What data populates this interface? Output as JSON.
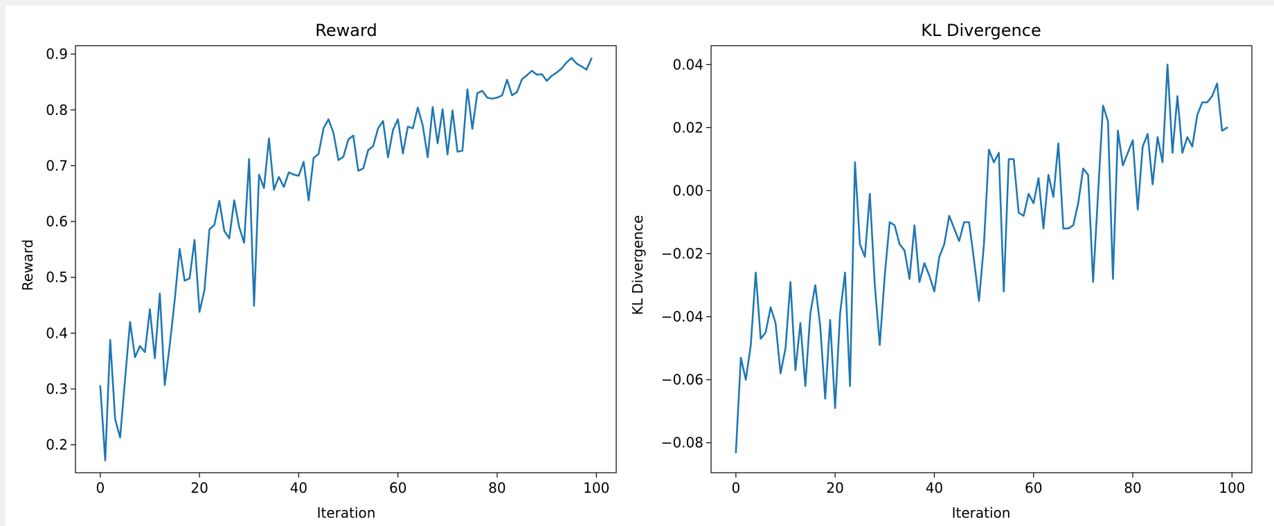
{
  "chart_data": [
    {
      "type": "line",
      "title": "Reward",
      "xlabel": "Iteration",
      "ylabel": "Reward",
      "xlim": [
        -5,
        104
      ],
      "ylim": [
        0.15,
        0.915
      ],
      "xticks": [
        0,
        20,
        40,
        60,
        80,
        100
      ],
      "yticks": [
        0.2,
        0.3,
        0.4,
        0.5,
        0.6,
        0.7,
        0.8,
        0.9
      ],
      "ytick_labels": [
        "0.2",
        "0.3",
        "0.4",
        "0.5",
        "0.6",
        "0.7",
        "0.8",
        "0.9"
      ],
      "grid": false,
      "color": "#1f77b4",
      "series": [
        {
          "x": [
            0,
            1,
            2,
            3,
            4,
            5,
            6,
            7,
            8,
            9,
            10,
            11,
            12,
            13,
            14,
            15,
            16,
            17,
            18,
            19,
            20,
            21,
            22,
            23,
            24,
            25,
            26,
            27,
            28,
            29,
            30,
            31,
            32,
            33,
            34,
            35,
            36,
            37,
            38,
            39,
            40,
            41,
            42,
            43,
            44,
            45,
            46,
            47,
            48,
            49,
            50,
            51,
            52,
            53,
            54,
            55,
            56,
            57,
            58,
            59,
            60,
            61,
            62,
            63,
            64,
            65,
            66,
            67,
            68,
            69,
            70,
            71,
            72,
            73,
            74,
            75,
            76,
            77,
            78,
            79,
            80,
            81,
            82,
            83,
            84,
            85,
            86,
            87,
            88,
            89,
            90,
            91,
            92,
            93,
            94,
            95,
            96,
            97,
            98,
            99
          ],
          "values": [
            0.305,
            0.172,
            0.388,
            0.246,
            0.213,
            0.318,
            0.42,
            0.357,
            0.377,
            0.366,
            0.443,
            0.355,
            0.471,
            0.307,
            0.378,
            0.459,
            0.551,
            0.494,
            0.498,
            0.567,
            0.438,
            0.477,
            0.586,
            0.594,
            0.637,
            0.583,
            0.57,
            0.638,
            0.59,
            0.562,
            0.712,
            0.449,
            0.684,
            0.66,
            0.749,
            0.657,
            0.68,
            0.662,
            0.688,
            0.684,
            0.682,
            0.707,
            0.638,
            0.714,
            0.721,
            0.767,
            0.783,
            0.759,
            0.71,
            0.716,
            0.747,
            0.754,
            0.691,
            0.695,
            0.728,
            0.735,
            0.767,
            0.78,
            0.715,
            0.764,
            0.783,
            0.722,
            0.77,
            0.767,
            0.804,
            0.772,
            0.715,
            0.805,
            0.74,
            0.801,
            0.72,
            0.799,
            0.725,
            0.727,
            0.837,
            0.766,
            0.83,
            0.834,
            0.822,
            0.82,
            0.822,
            0.826,
            0.854,
            0.826,
            0.832,
            0.855,
            0.862,
            0.87,
            0.863,
            0.864,
            0.852,
            0.861,
            0.867,
            0.874,
            0.885,
            0.893,
            0.883,
            0.878,
            0.872,
            0.892
          ]
        }
      ]
    },
    {
      "type": "line",
      "title": "KL Divergence",
      "xlabel": "Iteration",
      "ylabel": "KL Divergence",
      "xlim": [
        -5,
        104
      ],
      "ylim": [
        -0.0895,
        0.046
      ],
      "xticks": [
        0,
        20,
        40,
        60,
        80,
        100
      ],
      "yticks": [
        -0.08,
        -0.06,
        -0.04,
        -0.02,
        0.0,
        0.02,
        0.04
      ],
      "ytick_labels": [
        "−0.08",
        "−0.06",
        "−0.04",
        "−0.02",
        "0.00",
        "0.02",
        "0.04"
      ],
      "grid": false,
      "color": "#1f77b4",
      "series": [
        {
          "x": [
            0,
            1,
            2,
            3,
            4,
            5,
            6,
            7,
            8,
            9,
            10,
            11,
            12,
            13,
            14,
            15,
            16,
            17,
            18,
            19,
            20,
            21,
            22,
            23,
            24,
            25,
            26,
            27,
            28,
            29,
            30,
            31,
            32,
            33,
            34,
            35,
            36,
            37,
            38,
            39,
            40,
            41,
            42,
            43,
            44,
            45,
            46,
            47,
            48,
            49,
            50,
            51,
            52,
            53,
            54,
            55,
            56,
            57,
            58,
            59,
            60,
            61,
            62,
            63,
            64,
            65,
            66,
            67,
            68,
            69,
            70,
            71,
            72,
            73,
            74,
            75,
            76,
            77,
            78,
            79,
            80,
            81,
            82,
            83,
            84,
            85,
            86,
            87,
            88,
            89,
            90,
            91,
            92,
            93,
            94,
            95,
            96,
            97,
            98,
            99
          ],
          "values": [
            -0.083,
            -0.053,
            -0.06,
            -0.049,
            -0.026,
            -0.047,
            -0.045,
            -0.037,
            -0.042,
            -0.058,
            -0.05,
            -0.029,
            -0.057,
            -0.042,
            -0.062,
            -0.039,
            -0.03,
            -0.043,
            -0.066,
            -0.041,
            -0.069,
            -0.039,
            -0.026,
            -0.062,
            0.009,
            -0.017,
            -0.021,
            -0.001,
            -0.03,
            -0.049,
            -0.027,
            -0.01,
            -0.011,
            -0.017,
            -0.019,
            -0.028,
            -0.011,
            -0.029,
            -0.023,
            -0.027,
            -0.032,
            -0.021,
            -0.017,
            -0.008,
            -0.012,
            -0.016,
            -0.01,
            -0.01,
            -0.022,
            -0.035,
            -0.017,
            0.013,
            0.009,
            0.012,
            -0.032,
            0.01,
            0.01,
            -0.007,
            -0.008,
            -0.001,
            -0.004,
            0.004,
            -0.012,
            0.005,
            -0.002,
            0.015,
            -0.012,
            -0.012,
            -0.011,
            -0.004,
            0.007,
            0.005,
            -0.029,
            -0.001,
            0.027,
            0.022,
            -0.028,
            0.019,
            0.008,
            0.012,
            0.016,
            -0.006,
            0.014,
            0.018,
            0.002,
            0.017,
            0.009,
            0.04,
            0.012,
            0.03,
            0.012,
            0.017,
            0.014,
            0.024,
            0.028,
            0.028,
            0.03,
            0.034,
            0.019,
            0.02
          ]
        }
      ]
    }
  ]
}
